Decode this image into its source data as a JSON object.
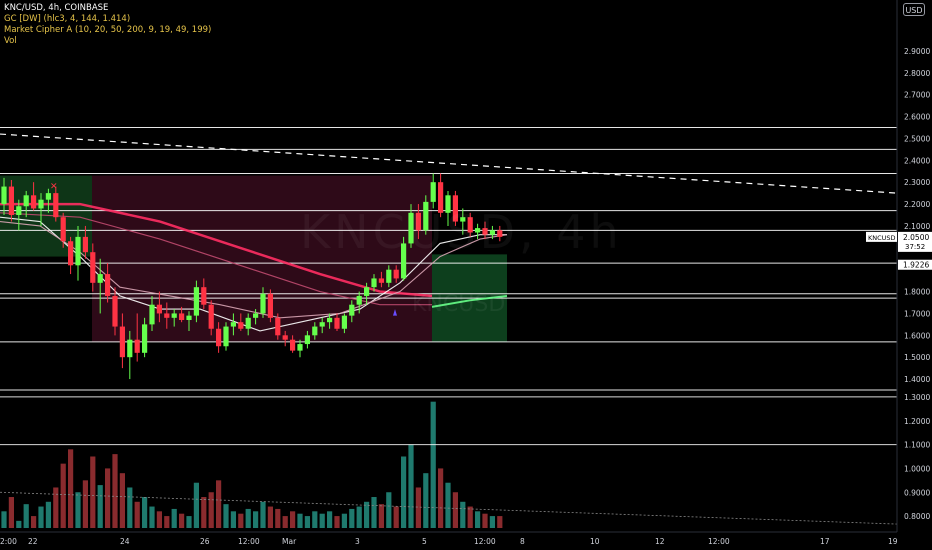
{
  "legend": {
    "symbol": "KNC/USD, 4h, COINBASE",
    "indicators": [
      "GC [DW] (hlc3, 4, 144, 1.414)",
      "Market Cipher A (10, 20, 50, 200, 9, 19, 49, 199)",
      "Vol"
    ]
  },
  "currency_button": "USD",
  "watermark": {
    "main": "KNCUSD, 4h",
    "sub": "KNCUSD"
  },
  "price_scale": {
    "ticks": [
      "2.9000",
      "2.8000",
      "2.7000",
      "2.6000",
      "2.5000",
      "2.4000",
      "2.3000",
      "2.2000",
      "2.1000",
      "2.0000",
      "1.8000",
      "1.7000",
      "1.6000",
      "1.5000",
      "1.4000",
      "1.3000",
      "1.2000",
      "1.1000",
      "1.0000",
      "0.9000",
      "0.8000"
    ],
    "last_price_label": "KNCUSD",
    "last_price": "2.0500",
    "countdown": "37:52",
    "level_label": "1.9226"
  },
  "time_axis": {
    "labels": [
      "2:00",
      "22",
      "24",
      "26",
      "12:00",
      "Mar",
      "3",
      "5",
      "12:00",
      "8",
      "10",
      "12",
      "12:00",
      "17",
      "19"
    ]
  },
  "colors": {
    "background": "#000000",
    "up": "#66ff4d",
    "down": "#ff3344",
    "vol_up": "#1f7a6e",
    "vol_down": "#8a2b2e",
    "ribbon": "#ff2e63"
  },
  "chart_data": {
    "type": "candlestick",
    "timeframe": "4h",
    "price_range": [
      1.35,
      2.95
    ],
    "horizontal_levels": [
      2.55,
      2.45,
      2.34,
      2.17,
      2.08,
      1.93,
      1.79,
      1.77,
      1.57,
      1.35
    ],
    "volume_panel_lines": [
      1.3,
      1.1
    ],
    "candles": [
      [
        2.2,
        2.32,
        2.15,
        2.28
      ],
      [
        2.28,
        2.31,
        2.12,
        2.15
      ],
      [
        2.15,
        2.22,
        2.08,
        2.19
      ],
      [
        2.19,
        2.26,
        2.14,
        2.24
      ],
      [
        2.24,
        2.3,
        2.17,
        2.18
      ],
      [
        2.18,
        2.25,
        2.1,
        2.22
      ],
      [
        2.22,
        2.27,
        2.16,
        2.25
      ],
      [
        2.25,
        2.28,
        2.12,
        2.14
      ],
      [
        2.14,
        2.16,
        2.0,
        2.03
      ],
      [
        2.03,
        2.05,
        1.88,
        1.92
      ],
      [
        1.92,
        2.1,
        1.85,
        2.05
      ],
      [
        2.05,
        2.1,
        1.95,
        1.98
      ],
      [
        1.98,
        2.02,
        1.8,
        1.84
      ],
      [
        1.84,
        1.95,
        1.7,
        1.88
      ],
      [
        1.88,
        1.93,
        1.75,
        1.78
      ],
      [
        1.78,
        1.82,
        1.6,
        1.64
      ],
      [
        1.64,
        1.7,
        1.45,
        1.5
      ],
      [
        1.5,
        1.62,
        1.4,
        1.58
      ],
      [
        1.58,
        1.7,
        1.48,
        1.52
      ],
      [
        1.52,
        1.68,
        1.5,
        1.65
      ],
      [
        1.65,
        1.78,
        1.62,
        1.74
      ],
      [
        1.74,
        1.8,
        1.66,
        1.7
      ],
      [
        1.7,
        1.75,
        1.63,
        1.68
      ],
      [
        1.68,
        1.72,
        1.64,
        1.7
      ],
      [
        1.7,
        1.73,
        1.66,
        1.67
      ],
      [
        1.67,
        1.71,
        1.62,
        1.69
      ],
      [
        1.69,
        1.85,
        1.66,
        1.82
      ],
      [
        1.82,
        1.86,
        1.72,
        1.74
      ],
      [
        1.74,
        1.76,
        1.6,
        1.63
      ],
      [
        1.63,
        1.66,
        1.52,
        1.55
      ],
      [
        1.55,
        1.66,
        1.53,
        1.64
      ],
      [
        1.64,
        1.7,
        1.6,
        1.66
      ],
      [
        1.66,
        1.7,
        1.62,
        1.63
      ],
      [
        1.63,
        1.7,
        1.6,
        1.68
      ],
      [
        1.68,
        1.72,
        1.65,
        1.7
      ],
      [
        1.7,
        1.82,
        1.68,
        1.79
      ],
      [
        1.79,
        1.81,
        1.66,
        1.68
      ],
      [
        1.68,
        1.7,
        1.58,
        1.6
      ],
      [
        1.6,
        1.62,
        1.55,
        1.58
      ],
      [
        1.58,
        1.6,
        1.52,
        1.53
      ],
      [
        1.53,
        1.58,
        1.5,
        1.56
      ],
      [
        1.56,
        1.62,
        1.54,
        1.6
      ],
      [
        1.6,
        1.66,
        1.58,
        1.64
      ],
      [
        1.64,
        1.68,
        1.61,
        1.66
      ],
      [
        1.66,
        1.7,
        1.63,
        1.68
      ],
      [
        1.68,
        1.7,
        1.62,
        1.63
      ],
      [
        1.63,
        1.7,
        1.61,
        1.69
      ],
      [
        1.69,
        1.76,
        1.66,
        1.74
      ],
      [
        1.74,
        1.8,
        1.7,
        1.78
      ],
      [
        1.78,
        1.84,
        1.74,
        1.82
      ],
      [
        1.82,
        1.88,
        1.8,
        1.86
      ],
      [
        1.86,
        1.89,
        1.82,
        1.84
      ],
      [
        1.84,
        1.92,
        1.82,
        1.9
      ],
      [
        1.9,
        1.92,
        1.84,
        1.86
      ],
      [
        1.86,
        2.05,
        1.85,
        2.02
      ],
      [
        2.02,
        2.2,
        2.0,
        2.16
      ],
      [
        2.16,
        2.2,
        2.04,
        2.08
      ],
      [
        2.08,
        2.24,
        2.06,
        2.21
      ],
      [
        2.21,
        2.34,
        2.18,
        2.3
      ],
      [
        2.3,
        2.34,
        2.14,
        2.16
      ],
      [
        2.16,
        2.26,
        2.1,
        2.24
      ],
      [
        2.24,
        2.26,
        2.1,
        2.12
      ],
      [
        2.12,
        2.18,
        2.06,
        2.14
      ],
      [
        2.14,
        2.16,
        2.05,
        2.07
      ],
      [
        2.07,
        2.11,
        2.04,
        2.09
      ],
      [
        2.09,
        2.12,
        2.04,
        2.06
      ],
      [
        2.06,
        2.1,
        2.04,
        2.08
      ],
      [
        2.08,
        2.1,
        2.03,
        2.05
      ]
    ],
    "volume": [
      0.82,
      0.88,
      0.78,
      0.85,
      0.8,
      0.84,
      0.86,
      0.92,
      1.02,
      1.08,
      0.9,
      0.95,
      1.05,
      0.93,
      1.0,
      1.06,
      0.98,
      0.92,
      0.86,
      0.88,
      0.84,
      0.82,
      0.8,
      0.83,
      0.81,
      0.8,
      0.94,
      0.88,
      0.9,
      0.95,
      0.85,
      0.82,
      0.81,
      0.83,
      0.82,
      0.86,
      0.84,
      0.83,
      0.8,
      0.82,
      0.81,
      0.8,
      0.82,
      0.81,
      0.82,
      0.8,
      0.81,
      0.83,
      0.84,
      0.86,
      0.88,
      0.85,
      0.9,
      0.84,
      1.05,
      1.1,
      0.92,
      0.98,
      1.28,
      1.0,
      0.94,
      0.9,
      0.86,
      0.84,
      0.82,
      0.81,
      0.8,
      0.8
    ]
  }
}
